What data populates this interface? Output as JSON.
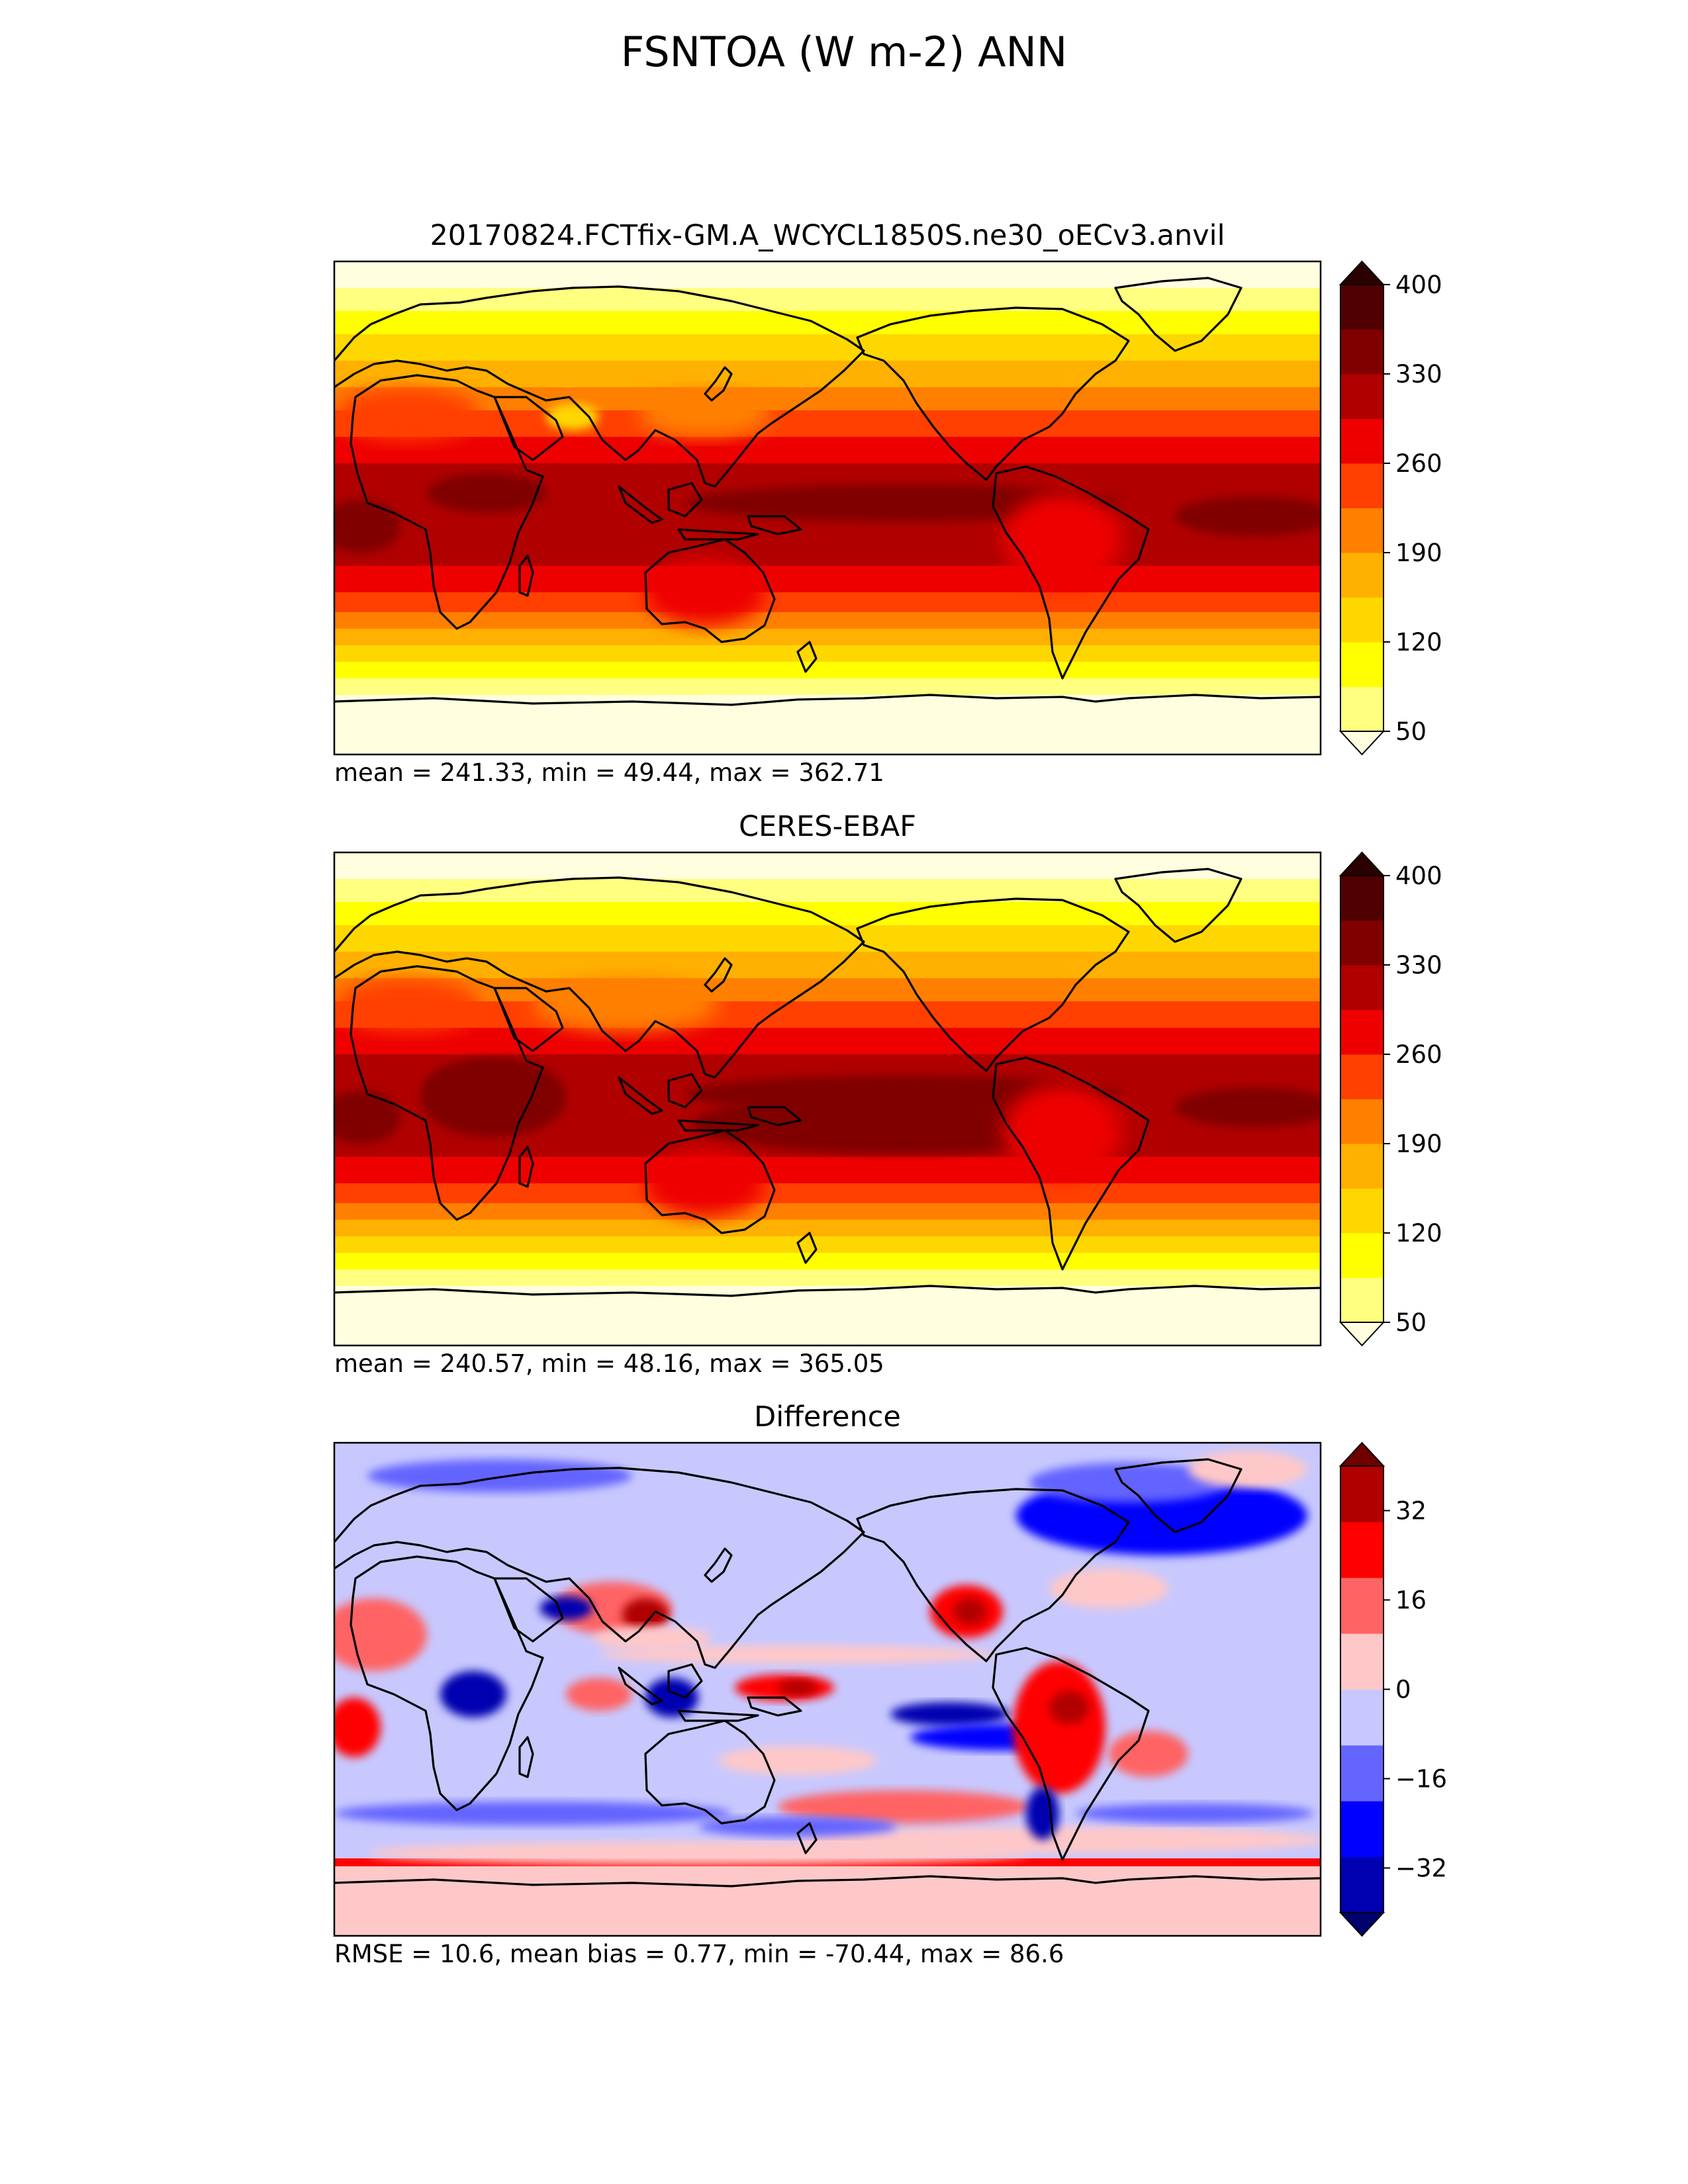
{
  "suptitle": "FSNTOA (W m-2) ANN",
  "colors": {
    "absolute_levels": [
      "#ffffe0",
      "#ffff80",
      "#ffff00",
      "#ffd700",
      "#ffb000",
      "#ff8000",
      "#ff4000",
      "#ee0000",
      "#b00000",
      "#800000",
      "#500000",
      "#2a0000"
    ],
    "difference_levels": [
      "#00006e",
      "#0000b0",
      "#0000ff",
      "#6464ff",
      "#c8c8ff",
      "#ffc8c8",
      "#ff6464",
      "#ff0000",
      "#b00000",
      "#6e0000"
    ],
    "coastline": "#000000"
  },
  "chart_data": [
    {
      "type": "heatmap",
      "title": "20170824.FCTfix-GM.A_WCYCL1850S.ne30_oECv3.anvil",
      "field": "absolute",
      "colorbar": {
        "min": 50,
        "max": 400,
        "ticks": [
          50,
          120,
          190,
          260,
          330,
          400
        ],
        "extend": "both"
      },
      "stats": {
        "text": "mean = 241.33, min = 49.44, max = 362.71",
        "mean": 241.33,
        "min": 49.44,
        "max": 362.71
      }
    },
    {
      "type": "heatmap",
      "title": "CERES-EBAF",
      "field": "absolute",
      "colorbar": {
        "min": 50,
        "max": 400,
        "ticks": [
          50,
          120,
          190,
          260,
          330,
          400
        ],
        "extend": "both"
      },
      "stats": {
        "text": "mean = 240.57, min = 48.16, max = 365.05",
        "mean": 240.57,
        "min": 48.16,
        "max": 365.05
      }
    },
    {
      "type": "heatmap",
      "title": "Difference",
      "field": "difference",
      "colorbar": {
        "min": -40,
        "max": 40,
        "ticks": [
          -32,
          -16,
          0,
          16,
          32
        ],
        "tick_labels": [
          "−32",
          "−16",
          "0",
          "16",
          "32"
        ],
        "extend": "both"
      },
      "stats": {
        "text": "RMSE = 10.6, mean bias = 0.77, min = -70.44, max = 86.6",
        "rmse": 10.6,
        "mean_bias": 0.77,
        "min": -70.44,
        "max": 86.6
      }
    }
  ]
}
